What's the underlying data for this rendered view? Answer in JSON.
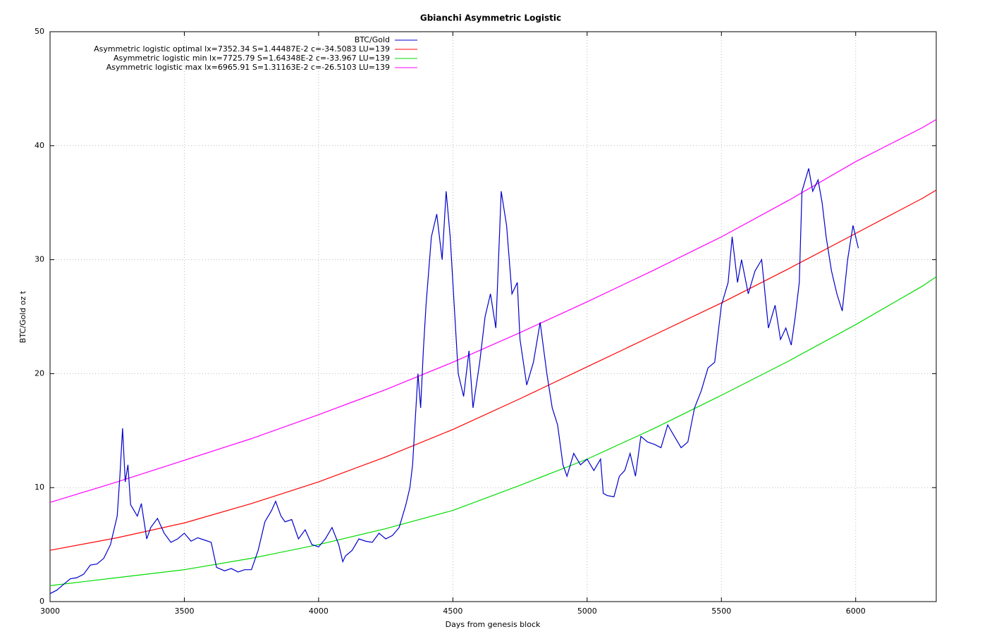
{
  "chart_data": {
    "type": "line",
    "title": "Gbianchi Asymmetric Logistic",
    "xlabel": "Days from genesis block",
    "ylabel": "BTC/Gold oz t",
    "xlim": [
      3000,
      6300
    ],
    "ylim": [
      0,
      50
    ],
    "xticks": [
      3000,
      3500,
      4000,
      4500,
      5000,
      5500,
      6000
    ],
    "yticks": [
      0,
      10,
      20,
      30,
      40,
      50
    ],
    "grid": true,
    "legend": "top-left",
    "series": [
      {
        "name": "BTC/Gold",
        "color": "#0000cc",
        "x": [
          3000,
          3025,
          3050,
          3075,
          3100,
          3125,
          3150,
          3175,
          3200,
          3225,
          3250,
          3260,
          3270,
          3280,
          3290,
          3300,
          3325,
          3340,
          3360,
          3375,
          3400,
          3425,
          3450,
          3475,
          3500,
          3525,
          3550,
          3575,
          3600,
          3620,
          3650,
          3675,
          3700,
          3725,
          3750,
          3775,
          3800,
          3825,
          3840,
          3860,
          3875,
          3900,
          3925,
          3950,
          3975,
          4000,
          4025,
          4050,
          4075,
          4090,
          4100,
          4125,
          4150,
          4175,
          4200,
          4225,
          4250,
          4275,
          4300,
          4325,
          4340,
          4350,
          4360,
          4370,
          4380,
          4390,
          4400,
          4420,
          4440,
          4460,
          4475,
          4490,
          4500,
          4520,
          4540,
          4560,
          4575,
          4600,
          4620,
          4640,
          4660,
          4680,
          4700,
          4720,
          4740,
          4750,
          4775,
          4800,
          4825,
          4850,
          4870,
          4890,
          4910,
          4925,
          4950,
          4975,
          5000,
          5025,
          5050,
          5060,
          5075,
          5100,
          5120,
          5140,
          5160,
          5180,
          5200,
          5225,
          5250,
          5275,
          5300,
          5325,
          5350,
          5375,
          5400,
          5425,
          5450,
          5475,
          5500,
          5525,
          5540,
          5560,
          5575,
          5600,
          5625,
          5650,
          5675,
          5700,
          5720,
          5740,
          5760,
          5775,
          5790,
          5800,
          5825,
          5840,
          5860,
          5875,
          5890,
          5910,
          5930,
          5950,
          5970,
          5990,
          6000,
          6010
        ],
        "values": [
          0.7,
          1.0,
          1.5,
          2.0,
          2.1,
          2.4,
          3.2,
          3.3,
          3.8,
          5.0,
          7.5,
          11,
          15.2,
          10.5,
          12,
          8.5,
          7.5,
          8.6,
          5.5,
          6.5,
          7.3,
          6.0,
          5.2,
          5.5,
          6.0,
          5.3,
          5.6,
          5.4,
          5.2,
          3.0,
          2.7,
          2.9,
          2.6,
          2.8,
          2.8,
          4.5,
          7.0,
          8.0,
          8.8,
          7.5,
          7.0,
          7.2,
          5.5,
          6.3,
          5.0,
          4.8,
          5.5,
          6.5,
          5.0,
          3.5,
          4.0,
          4.5,
          5.5,
          5.3,
          5.2,
          6.0,
          5.5,
          5.8,
          6.5,
          8.5,
          10,
          12,
          16,
          20,
          17,
          22,
          26,
          32,
          34,
          30,
          36,
          32,
          28,
          20,
          18,
          22,
          17,
          21,
          25,
          27,
          24,
          36,
          33,
          27,
          28,
          23,
          19,
          21,
          24.5,
          20,
          17,
          15.5,
          12,
          11,
          13,
          12,
          12.5,
          11.5,
          12.5,
          9.5,
          9.3,
          9.2,
          11,
          11.5,
          13,
          11,
          14.5,
          14,
          13.8,
          13.5,
          15.5,
          14.5,
          13.5,
          14,
          17,
          18.5,
          20.5,
          21,
          26,
          28,
          32,
          28,
          30,
          27,
          29,
          30,
          24,
          26,
          23,
          24,
          22.5,
          25,
          28,
          36,
          38,
          36,
          37,
          35,
          32,
          29,
          27,
          25.5,
          30,
          33,
          32,
          31
        ]
      },
      {
        "name": "Asymmetric logistic optimal lx=7352.34 S=1.44487E-2 c=-34.5083 LU=139",
        "color": "#ff0000",
        "x": [
          3000,
          3250,
          3500,
          3750,
          4000,
          4250,
          4500,
          4750,
          5000,
          5250,
          5500,
          5750,
          6000,
          6250,
          6300
        ],
        "values": [
          4.5,
          5.6,
          6.9,
          8.6,
          10.5,
          12.7,
          15.1,
          17.8,
          20.6,
          23.4,
          26.2,
          29.2,
          32.3,
          35.4,
          36.1
        ]
      },
      {
        "name": "Asymmetric logistic min lx=7725.79 S=1.64348E-2 c=-33.967 LU=139",
        "color": "#00dd00",
        "x": [
          3000,
          3250,
          3500,
          3750,
          4000,
          4250,
          4500,
          4750,
          5000,
          5250,
          5500,
          5750,
          6000,
          6250,
          6300
        ],
        "values": [
          1.4,
          2.1,
          2.8,
          3.8,
          5.0,
          6.4,
          8.0,
          10.2,
          12.5,
          15.2,
          18.1,
          21.1,
          24.3,
          27.7,
          28.5
        ]
      },
      {
        "name": "Asymmetric logistic max lx=6965.91 S=1.31163E-2 c=-26.5103 LU=139",
        "color": "#ff00ff",
        "x": [
          3000,
          3250,
          3500,
          3750,
          4000,
          4250,
          4500,
          4750,
          5000,
          5250,
          5500,
          5750,
          6000,
          6250,
          6300
        ],
        "values": [
          8.7,
          10.5,
          12.4,
          14.3,
          16.4,
          18.6,
          21.0,
          23.6,
          26.3,
          29.1,
          32.0,
          35.2,
          38.6,
          41.6,
          42.3
        ]
      }
    ]
  }
}
